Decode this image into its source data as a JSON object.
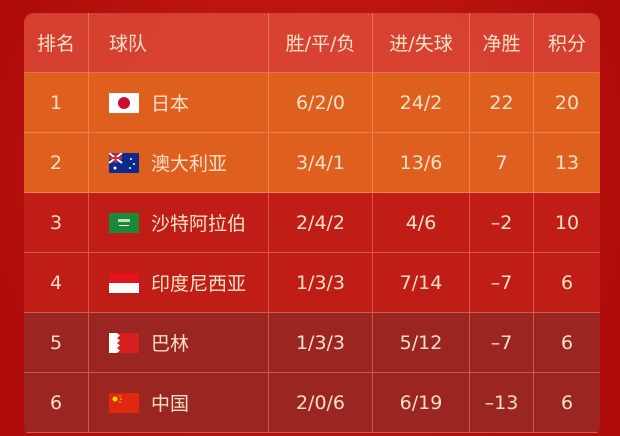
{
  "headers": {
    "rank": "排名",
    "team": "球队",
    "wdl": "胜/平/负",
    "goals": "进/失球",
    "gd": "净胜",
    "pts": "积分"
  },
  "rows": [
    {
      "rank": "1",
      "flag": "japan-flag-icon",
      "team": "日本",
      "wdl": "6/2/0",
      "goals": "24/2",
      "gd": "22",
      "pts": "20"
    },
    {
      "rank": "2",
      "flag": "australia-flag-icon",
      "team": "澳大利亚",
      "wdl": "3/4/1",
      "goals": "13/6",
      "gd": "7",
      "pts": "13"
    },
    {
      "rank": "3",
      "flag": "saudi-arabia-flag-icon",
      "team": "沙特阿拉伯",
      "wdl": "2/4/2",
      "goals": "4/6",
      "gd": "–2",
      "pts": "10"
    },
    {
      "rank": "4",
      "flag": "indonesia-flag-icon",
      "team": "印度尼西亚",
      "wdl": "1/3/3",
      "goals": "7/14",
      "gd": "–7",
      "pts": "6"
    },
    {
      "rank": "5",
      "flag": "bahrain-flag-icon",
      "team": "巴林",
      "wdl": "1/3/3",
      "goals": "5/12",
      "gd": "–7",
      "pts": "6"
    },
    {
      "rank": "6",
      "flag": "china-flag-icon",
      "team": "中国",
      "wdl": "2/0/6",
      "goals": "6/19",
      "gd": "–13",
      "pts": "6"
    }
  ],
  "colors": {
    "qualify_direct": "#de5f1e",
    "playoff": "#c11d17",
    "eliminated": "#9b2521",
    "text": "#f8e1c8"
  }
}
